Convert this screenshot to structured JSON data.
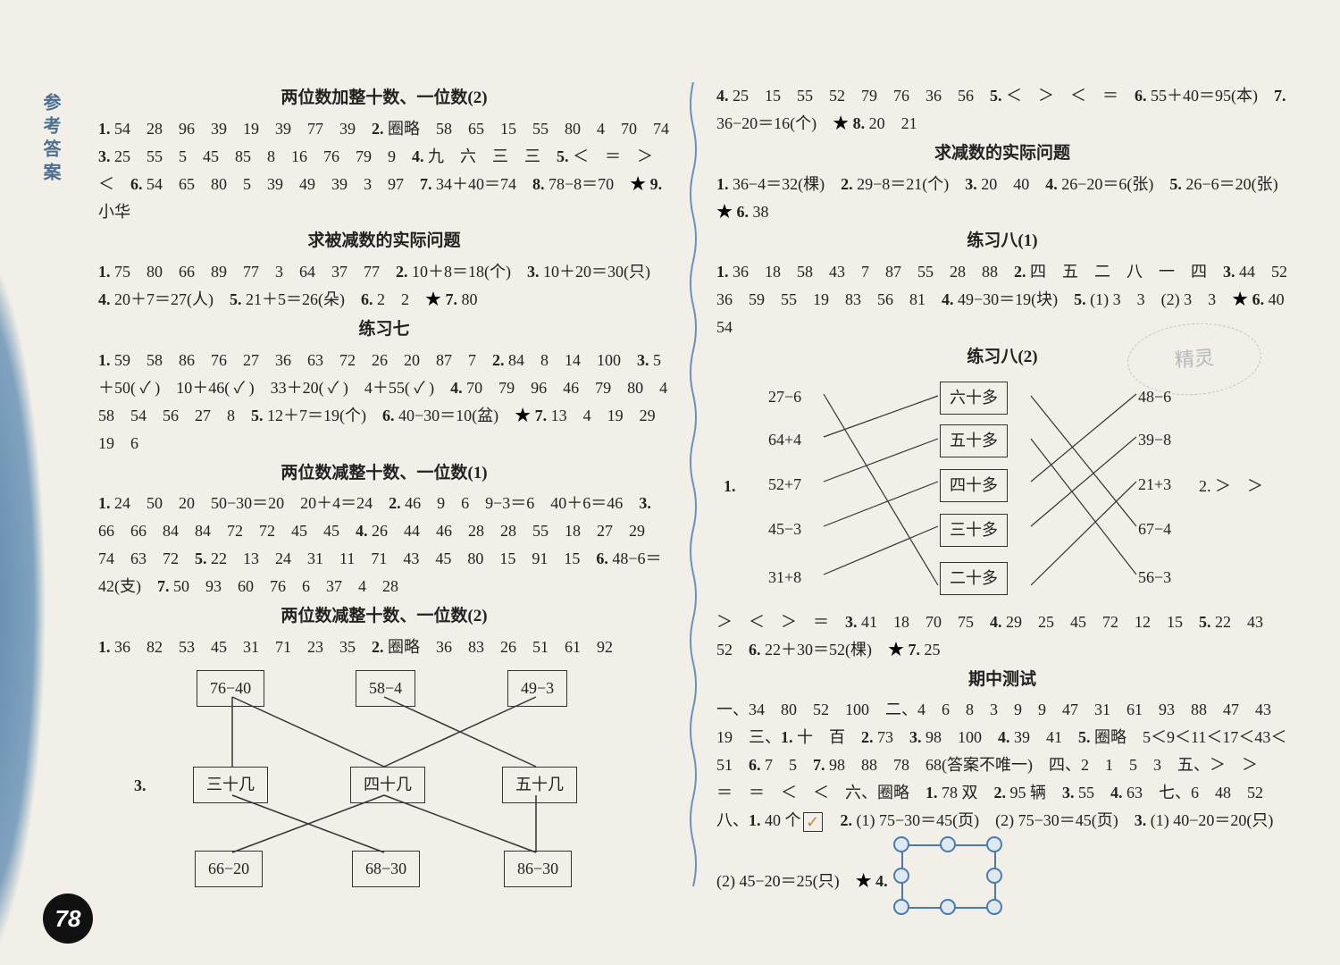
{
  "page_number": "78",
  "side_label": "参考答案",
  "watermark": "精灵",
  "left": {
    "s1_title": "两位数加整十数、一位数(2)",
    "s1_body": "<b class='num'>1.</b> 54　28　96　39　19　39　77　39　<b class='num'>2.</b> 圈略　58　65　15　55　80　4　70　74　<b class='num'>3.</b> 25　55　5　45　85　8　16　76　79　9　<b class='num'>4.</b> 九　六　三　三　<b class='num'>5.</b> ＜　＝　＞　＜　<b class='num'>6.</b> 54　65　80　5　39　49　39　3　97　<b class='num'>7.</b> 34＋40＝74　<b class='num'>8.</b> 78−8＝70　<span class='star'>★</span> <b class='num'>9.</b> 小华",
    "s2_title": "求被减数的实际问题",
    "s2_body": "<b class='num'>1.</b> 75　80　66　89　77　3　64　37　77　<b class='num'>2.</b> 10＋8＝18(个)　<b class='num'>3.</b> 10＋20＝30(只)　<b class='num'>4.</b> 20＋7＝27(人)　<b class='num'>5.</b> 21＋5＝26(朵)　<b class='num'>6.</b> 2　2　<span class='star'>★</span> <b class='num'>7.</b> 80",
    "s3_title": "练习七",
    "s3_body": "<b class='num'>1.</b> 59　58　86　76　27　36　63　72　26　20　87　7　<b class='num'>2.</b> 84　8　14　100　<b class='num'>3.</b> 5＋50( ✓ )　10＋46( ✓ )　33＋20( ✓ )　4＋55( ✓ )　<b class='num'>4.</b> 70　79　96　46　79　80　4　58　54　56　27　8　<b class='num'>5.</b> 12＋7＝19(个)　<b class='num'>6.</b> 40−30＝10(盆)　<span class='star'>★</span> <b class='num'>7.</b> 13　4　19　29　19　6",
    "s4_title": "两位数减整十数、一位数(1)",
    "s4_body": "<b class='num'>1.</b> 24　50　20　50−30＝20　20＋4＝24　<b class='num'>2.</b> 46　9　6　9−3＝6　40＋6＝46　<b class='num'>3.</b> 66　66　84　84　72　72　45　45　<b class='num'>4.</b> 26　44　46　28　28　55　18　27　29　74　63　72　<b class='num'>5.</b> 22　13　24　31　11　71　43　45　80　15　91　15　<b class='num'>6.</b> 48−6＝42(支)　<b class='num'>7.</b> 50　93　60　76　6　37　4　28",
    "s5_title": "两位数减整十数、一位数(2)",
    "s5_body": "<b class='num'>1.</b> 36　82　53　45　31　71　23　35　<b class='num'>2.</b> 圈略　36　83　26　51　61　92",
    "diag3_label": "3.",
    "d1_top": [
      "76−40",
      "58−4",
      "49−3"
    ],
    "d1_mid": [
      "三十几",
      "四十几",
      "五十几"
    ],
    "d1_bot": [
      "66−20",
      "68−30",
      "86−30"
    ]
  },
  "right": {
    "s0_body": "<b class='num'>4.</b> 25　15　55　52　79　76　36　56　<b class='num'>5.</b> ＜　＞　＜　＝　<b class='num'>6.</b> 55＋40＝95(本)　<b class='num'>7.</b> 36−20＝16(个)　<span class='star'>★</span> <b class='num'>8.</b> 20　21",
    "s1_title": "求减数的实际问题",
    "s1_body": "<b class='num'>1.</b> 36−4＝32(棵)　<b class='num'>2.</b> 29−8＝21(个)　<b class='num'>3.</b> 20　40　<b class='num'>4.</b> 26−20＝6(张)　<b class='num'>5.</b> 26−6＝20(张)　<span class='star'>★</span> <b class='num'>6.</b> 38",
    "s2_title": "练习八(1)",
    "s2_body": "<b class='num'>1.</b> 36　18　58　43　7　87　55　28　88　<b class='num'>2.</b> 四　五　二　八　一　四　<b class='num'>3.</b> 44　52　36　59　55　19　83　56　81　<b class='num'>4.</b> 49−30＝19(块)　<b class='num'>5.</b> (1) 3　3　(2) 3　3　<span class='star'>★</span> <b class='num'>6.</b> 40　54",
    "s3_title": "练习八(2)",
    "d2_left": [
      "27−6",
      "64+4",
      "52+7",
      "45−3",
      "31+8"
    ],
    "d2_mid": [
      "六十多",
      "五十多",
      "四十多",
      "三十多",
      "二十多"
    ],
    "d2_right": [
      "48−6",
      "39−8",
      "21+3",
      "67−4",
      "56−3"
    ],
    "d2_prefix1": "1.",
    "d2_suffix2": "2. ＞　＞",
    "s3_tail": "＞　＜　＞　＝　<b class='num'>3.</b> 41　18　70　75　<b class='num'>4.</b> 29　25　45　72　12　15　<b class='num'>5.</b> 22　43　52　<b class='num'>6.</b> 22＋30＝52(棵)　<span class='star'>★</span> <b class='num'>7.</b> 25",
    "s4_title": "期中测试",
    "s4_body_a": "一、34　80　52　100　二、4　6　8　3　9　9　47　31　61　93　88　47　43　19　三、<b class='num'>1.</b> 十　百　<b class='num'>2.</b> 73　<b class='num'>3.</b> 98　100　<b class='num'>4.</b> 39　41　<b class='num'>5.</b> 圈略　5＜9＜11＜17＜43＜51　<b class='num'>6.</b> 7　5　<b class='num'>7.</b> 98　88　78　68(答案不唯一)　四、2　1　5　3　五、＞　＞　＝　＝　＜　＜　六、圈略　<b class='num'>1.</b> 78 双　<b class='num'>2.</b> 95 辆　<b class='num'>3.</b> 55　<b class='num'>4.</b> 63　七、6　48　52　八、<b class='num'>1.</b> 40 个",
    "s4_check": "✓",
    "s4_body_b": "　<b class='num'>2.</b> (1) 75−30＝45(页)　(2) 75−30＝45(页)　<b class='num'>3.</b> (1) 40−20＝20(只)",
    "s4_body_c": "(2) 45−20＝25(只)　<span class='star'>★</span> <b class='num'>4.</b> "
  },
  "colors": {
    "text": "#222222",
    "page_bg": "#f2efe8",
    "accent_blue": "#4a7ab0",
    "side_label": "#4a6f8f",
    "dot_fill": "#dfe9f2",
    "wave": "#6b8fbf"
  }
}
